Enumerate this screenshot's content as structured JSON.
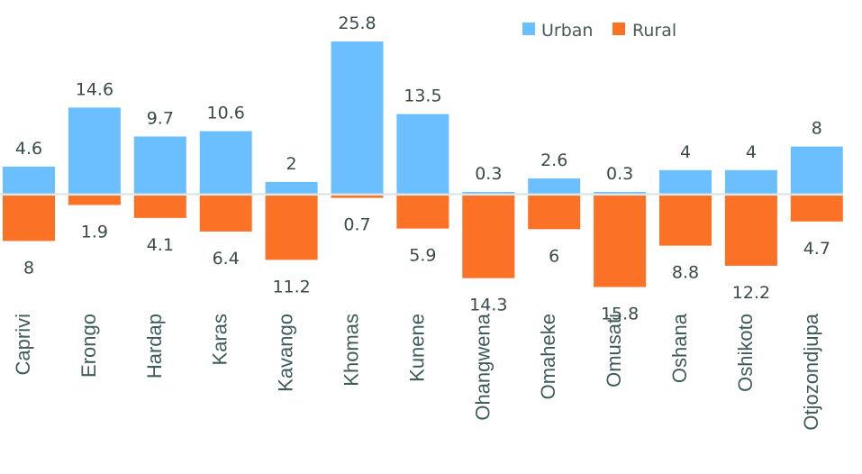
{
  "chart_data": {
    "type": "bar",
    "title": "",
    "xlabel": "",
    "ylabel": "",
    "grid": false,
    "legend_position": "top-right",
    "categories": [
      "Caprivi",
      "Erongo",
      "Hardap",
      "Karas",
      "Kavango",
      "Khomas",
      "Kunene",
      "Ohangwena",
      "Omaheke",
      "Omusati",
      "Oshana",
      "Oshikoto",
      "Otjozondjupa"
    ],
    "series": [
      {
        "name": "Urban",
        "color": "#6bbfff",
        "direction": "up",
        "values": [
          4.6,
          14.6,
          9.7,
          10.6,
          2,
          25.8,
          13.5,
          0.3,
          2.6,
          0.3,
          4,
          4,
          8
        ]
      },
      {
        "name": "Rural",
        "color": "#fb7126",
        "direction": "down",
        "values": [
          8,
          1.9,
          4.1,
          6.4,
          11.2,
          0.7,
          5.9,
          14.3,
          6,
          15.8,
          8.8,
          12.2,
          4.7
        ]
      }
    ],
    "value_labels": {
      "Urban": [
        "4.6",
        "14.6",
        "9.7",
        "10.6",
        "2",
        "25.8",
        "13.5",
        "0.3",
        "2.6",
        "0.3",
        "4",
        "4",
        "8"
      ],
      "Rural": [
        "8",
        "1.9",
        "4.1",
        "6.4",
        "11.2",
        "0.7",
        "5.9",
        "14.3",
        "6",
        "15.8",
        "8.8",
        "12.2",
        "4.7"
      ]
    },
    "axis_line_color": "#d9e0e0"
  }
}
